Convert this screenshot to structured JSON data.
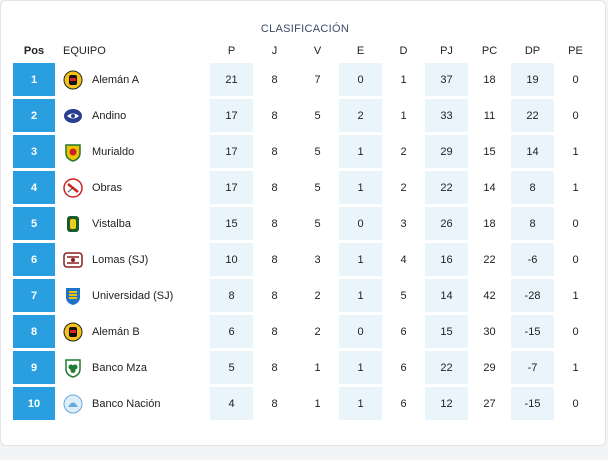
{
  "title": "CLASIFICACIÓN",
  "headers": {
    "pos": "Pos",
    "team": "EQUIPO",
    "p": "P",
    "j": "J",
    "v": "V",
    "e": "E",
    "d": "D",
    "pj": "PJ",
    "pc": "PC",
    "dp": "DP",
    "pe": "PE"
  },
  "colors": {
    "accent": "#2a9fe0",
    "shaded_cell": "#eaf4fb"
  },
  "rows": [
    {
      "pos": "1",
      "team": "Alemán A",
      "crest": "aleman-crest-icon",
      "p": "21",
      "j": "8",
      "v": "7",
      "e": "0",
      "d": "1",
      "pj": "37",
      "pc": "18",
      "dp": "19",
      "pe": "0"
    },
    {
      "pos": "2",
      "team": "Andino",
      "crest": "andino-crest-icon",
      "p": "17",
      "j": "8",
      "v": "5",
      "e": "2",
      "d": "1",
      "pj": "33",
      "pc": "11",
      "dp": "22",
      "pe": "0"
    },
    {
      "pos": "3",
      "team": "Murialdo",
      "crest": "murialdo-crest-icon",
      "p": "17",
      "j": "8",
      "v": "5",
      "e": "1",
      "d": "2",
      "pj": "29",
      "pc": "15",
      "dp": "14",
      "pe": "1"
    },
    {
      "pos": "4",
      "team": "Obras",
      "crest": "obras-crest-icon",
      "p": "17",
      "j": "8",
      "v": "5",
      "e": "1",
      "d": "2",
      "pj": "22",
      "pc": "14",
      "dp": "8",
      "pe": "1"
    },
    {
      "pos": "5",
      "team": "Vistalba",
      "crest": "vistalba-crest-icon",
      "p": "15",
      "j": "8",
      "v": "5",
      "e": "0",
      "d": "3",
      "pj": "26",
      "pc": "18",
      "dp": "8",
      "pe": "0"
    },
    {
      "pos": "6",
      "team": "Lomas (SJ)",
      "crest": "lomas-crest-icon",
      "p": "10",
      "j": "8",
      "v": "3",
      "e": "1",
      "d": "4",
      "pj": "16",
      "pc": "22",
      "dp": "-6",
      "pe": "0"
    },
    {
      "pos": "7",
      "team": "Universidad (SJ)",
      "crest": "universidad-crest-icon",
      "p": "8",
      "j": "8",
      "v": "2",
      "e": "1",
      "d": "5",
      "pj": "14",
      "pc": "42",
      "dp": "-28",
      "pe": "1"
    },
    {
      "pos": "8",
      "team": "Alemán B",
      "crest": "aleman-crest-icon",
      "p": "6",
      "j": "8",
      "v": "2",
      "e": "0",
      "d": "6",
      "pj": "15",
      "pc": "30",
      "dp": "-15",
      "pe": "0"
    },
    {
      "pos": "9",
      "team": "Banco Mza",
      "crest": "banco-mza-crest-icon",
      "p": "5",
      "j": "8",
      "v": "1",
      "e": "1",
      "d": "6",
      "pj": "22",
      "pc": "29",
      "dp": "-7",
      "pe": "1"
    },
    {
      "pos": "10",
      "team": "Banco Nación",
      "crest": "banco-nacion-crest-icon",
      "p": "4",
      "j": "8",
      "v": "1",
      "e": "1",
      "d": "6",
      "pj": "12",
      "pc": "27",
      "dp": "-15",
      "pe": "0"
    }
  ]
}
